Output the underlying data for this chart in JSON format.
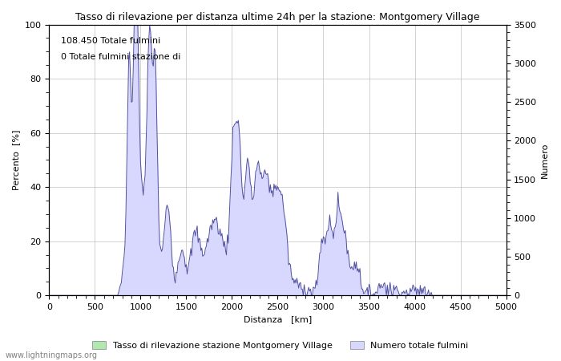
{
  "title": "Tasso di rilevazione per distanza ultime 24h per la stazione: Montgomery Village",
  "xlabel": "Distanza   [km]",
  "ylabel_left": "Percento  [%]",
  "ylabel_right": "Numero",
  "annotation_line1": "108.450 Totale fulmini",
  "annotation_line2": "0 Totale fulmini stazione di",
  "xlim": [
    0,
    5000
  ],
  "ylim_left": [
    0,
    100
  ],
  "ylim_right": [
    0,
    3500
  ],
  "xticks": [
    0,
    500,
    1000,
    1500,
    2000,
    2500,
    3000,
    3500,
    4000,
    4500,
    5000
  ],
  "yticks_left": [
    0,
    20,
    40,
    60,
    80,
    100
  ],
  "yticks_right": [
    0,
    500,
    1000,
    1500,
    2000,
    2500,
    3000,
    3500
  ],
  "legend_label1": "Tasso di rilevazione stazione Montgomery Village",
  "legend_label2": "Numero totale fulmini",
  "fill_color_blue": "#d8d8ff",
  "fill_color_green": "#b0e8b0",
  "line_color_blue": "#5050a0",
  "watermark": "www.lightningmaps.org",
  "background_color": "#ffffff",
  "grid_color": "#b0b0b0"
}
